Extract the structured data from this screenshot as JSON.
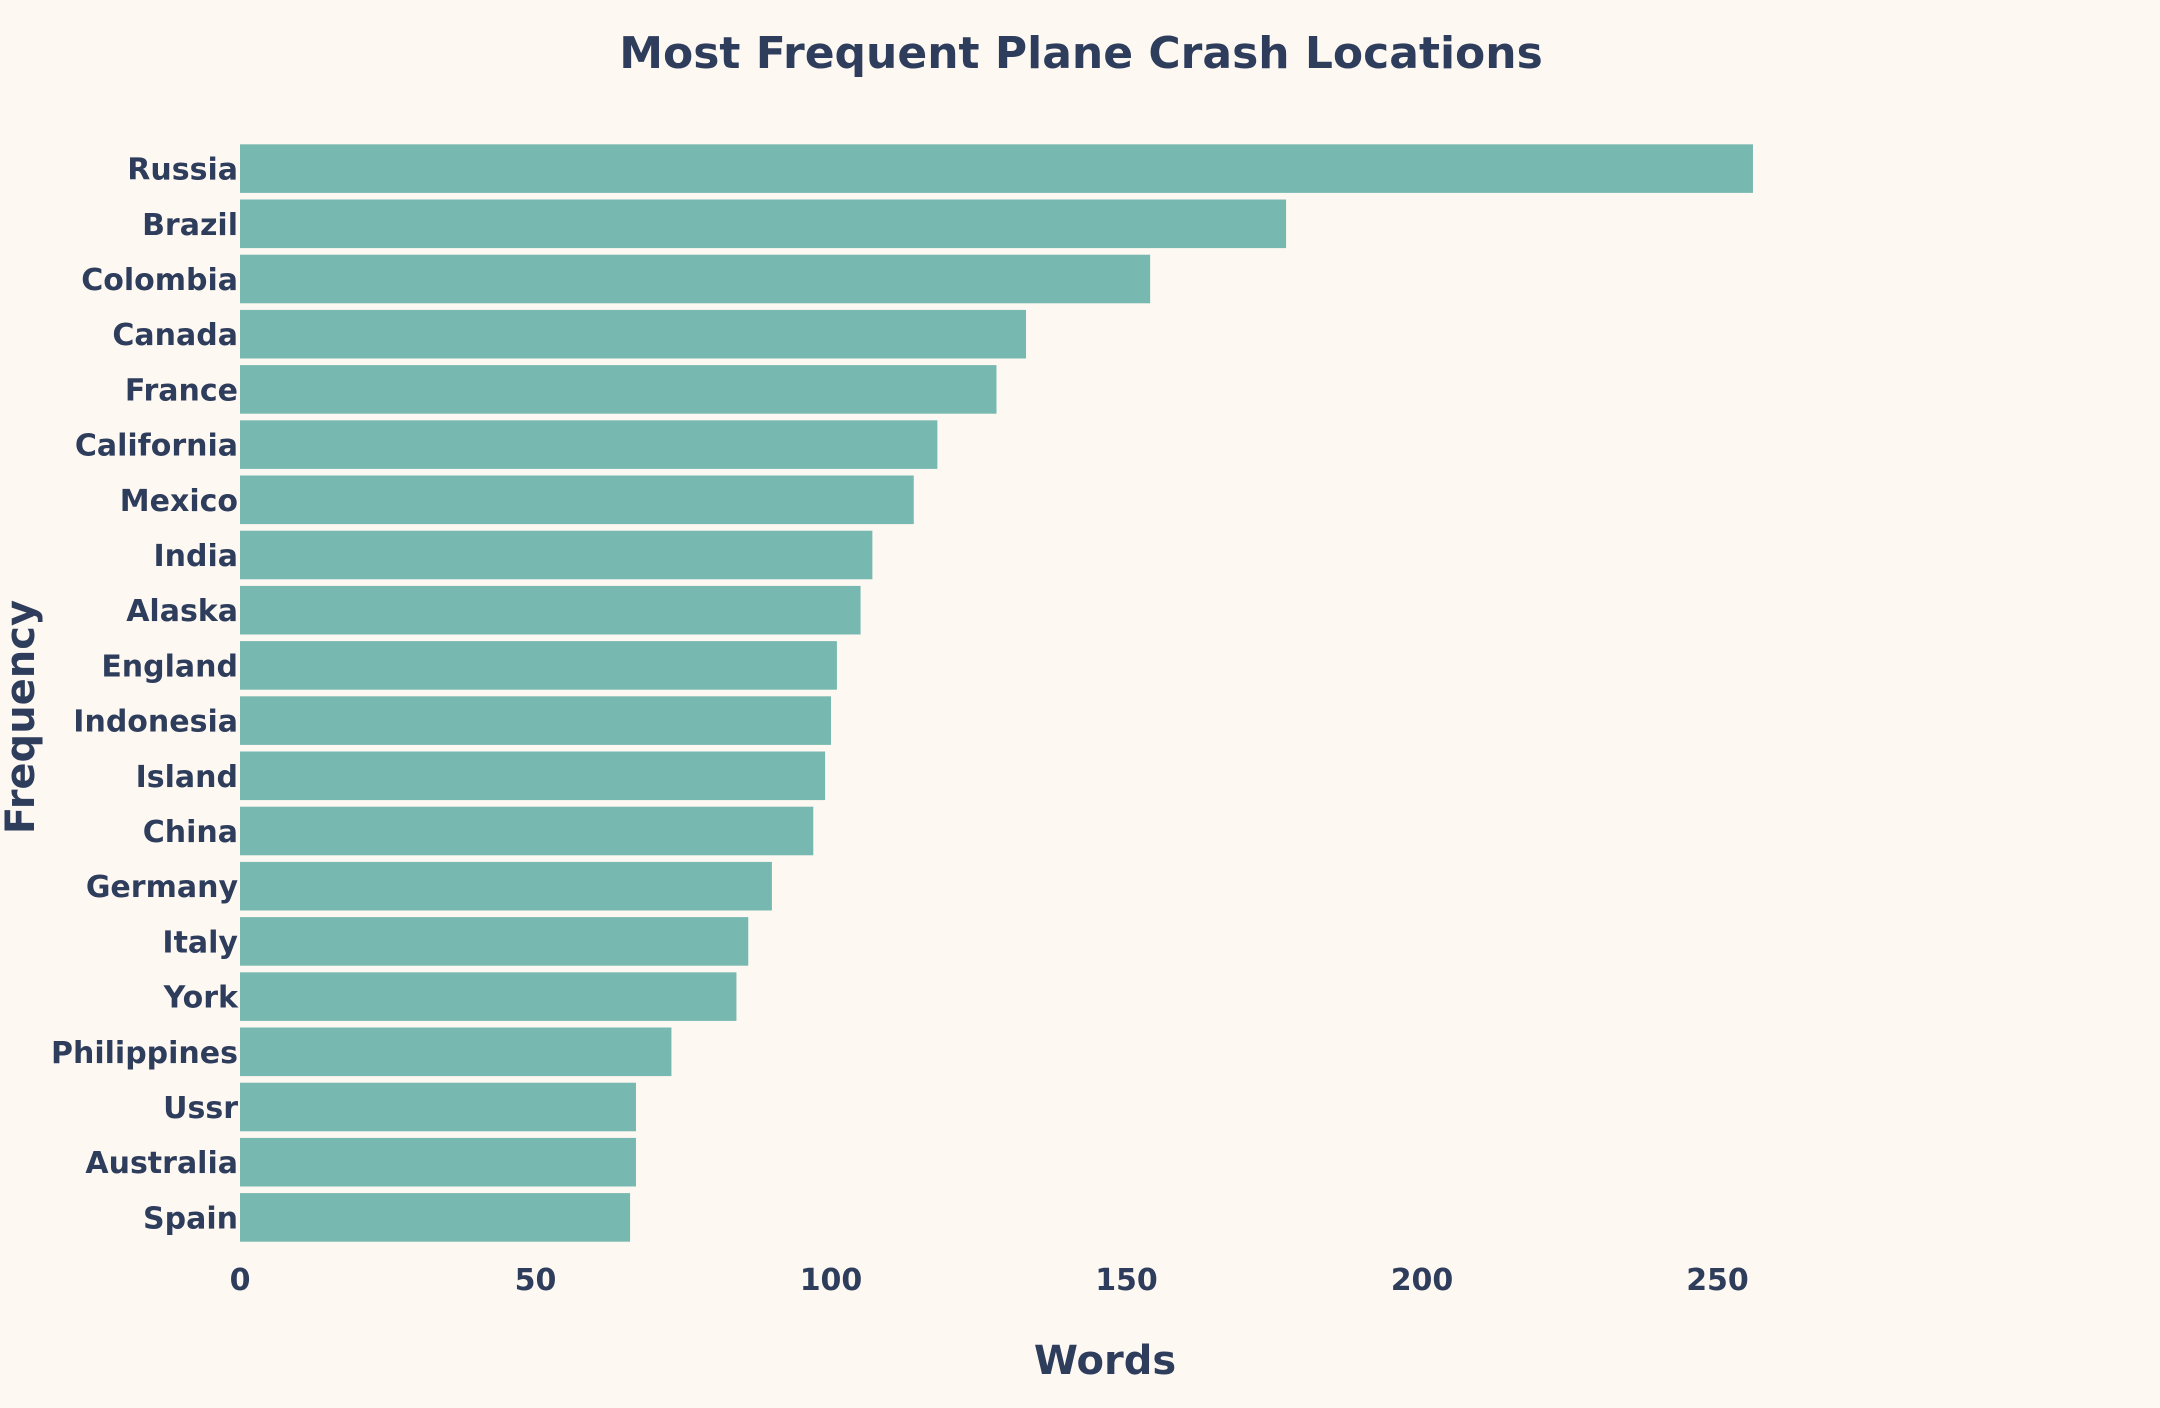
{
  "chart_data": {
    "type": "bar",
    "orientation": "horizontal",
    "title": "Most Frequent Plane Crash Locations",
    "xlabel": "Words",
    "ylabel": "Frequency",
    "categories": [
      "Russia",
      "Brazil",
      "Colombia",
      "Canada",
      "France",
      "California",
      "Mexico",
      "India",
      "Alaska",
      "England",
      "Indonesia",
      "Island",
      "China",
      "Germany",
      "Italy",
      "York",
      "Philippines",
      "Ussr",
      "Australia",
      "Spain"
    ],
    "values": [
      256,
      177,
      154,
      133,
      128,
      118,
      114,
      107,
      105,
      101,
      100,
      99,
      97,
      90,
      86,
      84,
      73,
      67,
      67,
      66
    ],
    "xlim": [
      0,
      300
    ],
    "xticks": [
      0,
      50,
      100,
      150,
      200,
      250
    ],
    "grid": false,
    "bar_color": "#77b8b0",
    "background_color": "#fdf8f2",
    "text_color": "#2e3d5c"
  }
}
